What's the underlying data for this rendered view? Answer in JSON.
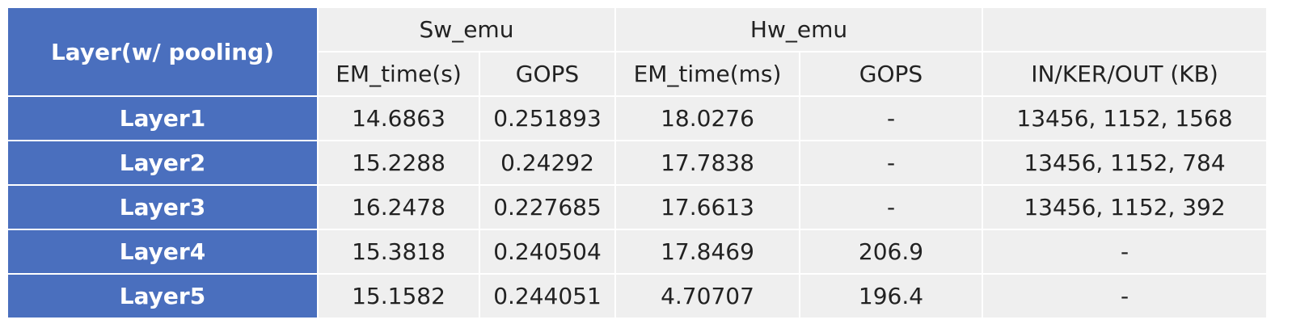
{
  "table": {
    "corner": "Layer(w/ pooling)",
    "groups": [
      "Sw_emu",
      "Hw_emu"
    ],
    "columns": [
      "EM_time(s)",
      "GOPS",
      "EM_time(ms)",
      "GOPS",
      "IN/KER/OUT (KB)"
    ],
    "rows": [
      [
        "Layer1",
        "14.6863",
        "0.251893",
        "18.0276",
        "-",
        "13456, 1152, 1568"
      ],
      [
        "Layer2",
        "15.2288",
        "0.24292",
        "17.7838",
        "-",
        "13456, 1152, 784"
      ],
      [
        "Layer3",
        "16.2478",
        "0.227685",
        "17.6613",
        "-",
        "13456, 1152, 392"
      ],
      [
        "Layer4",
        "15.3818",
        "0.240504",
        "17.8469",
        "206.9",
        "-"
      ],
      [
        "Layer5",
        "15.1582",
        "0.244051",
        "4.70707",
        "196.4",
        "-"
      ]
    ]
  }
}
